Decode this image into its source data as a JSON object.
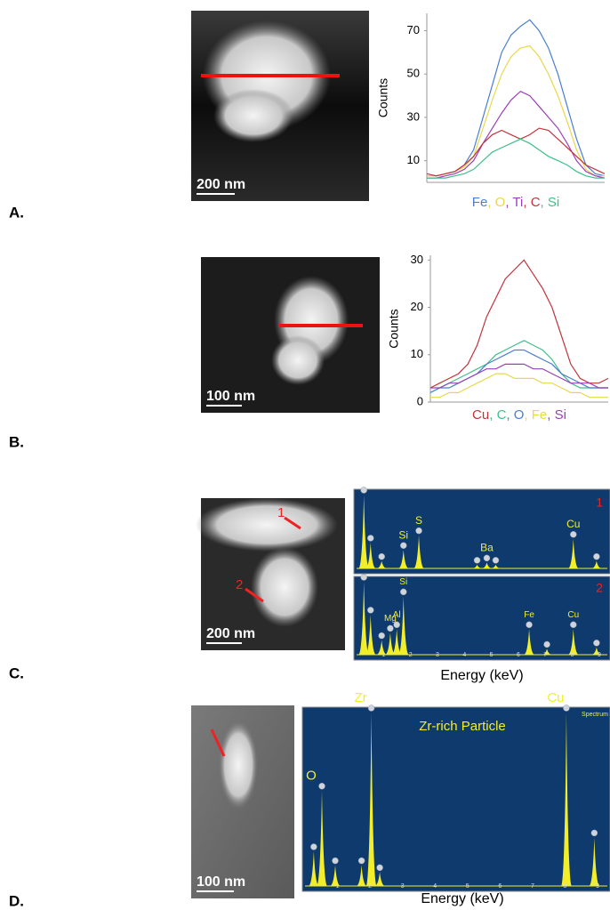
{
  "legend_separator": ", ",
  "panels": [
    {
      "label": "A.",
      "scale_bar": "200 nm",
      "profile": {
        "y_label": "Counts",
        "ylim": [
          0,
          78
        ],
        "yticks": [
          10,
          30,
          50,
          70
        ],
        "series": [
          {
            "name": "Fe",
            "color": "#4a7fd0",
            "values": [
              3,
              3,
              4,
              5,
              8,
              15,
              30,
              45,
              60,
              68,
              72,
              75,
              70,
              62,
              50,
              35,
              20,
              8,
              4,
              3
            ]
          },
          {
            "name": "O",
            "color": "#e8d84a",
            "values": [
              3,
              3,
              4,
              5,
              7,
              12,
              25,
              38,
              50,
              58,
              62,
              63,
              58,
              50,
              40,
              28,
              15,
              6,
              3,
              3
            ]
          },
          {
            "name": "Ti",
            "color": "#9a3fb8",
            "values": [
              2,
              2,
              3,
              4,
              6,
              10,
              18,
              25,
              32,
              38,
              42,
              40,
              35,
              30,
              25,
              18,
              10,
              5,
              3,
              2
            ]
          },
          {
            "name": "C",
            "color": "#c0343a",
            "values": [
              4,
              3,
              4,
              5,
              8,
              12,
              18,
              22,
              24,
              22,
              20,
              22,
              25,
              24,
              20,
              16,
              12,
              8,
              6,
              4
            ]
          },
          {
            "name": "Si",
            "color": "#3fbf8a",
            "values": [
              2,
              2,
              2,
              3,
              4,
              6,
              10,
              14,
              16,
              18,
              20,
              18,
              15,
              12,
              10,
              8,
              5,
              3,
              2,
              2
            ]
          }
        ]
      }
    },
    {
      "label": "B.",
      "scale_bar": "100 nm",
      "profile": {
        "y_label": "Counts",
        "ylim": [
          0,
          31
        ],
        "yticks": [
          0,
          10,
          20,
          30
        ],
        "series": [
          {
            "name": "Cu",
            "color": "#c0343a",
            "values": [
              3,
              4,
              5,
              6,
              8,
              12,
              18,
              22,
              26,
              28,
              30,
              27,
              24,
              20,
              14,
              8,
              5,
              4,
              4,
              5
            ]
          },
          {
            "name": "C",
            "color": "#3fbf8a",
            "values": [
              2,
              3,
              4,
              5,
              6,
              7,
              8,
              10,
              11,
              12,
              13,
              12,
              11,
              9,
              6,
              4,
              3,
              3,
              3,
              3
            ]
          },
          {
            "name": "O",
            "color": "#4a7fd0",
            "values": [
              2,
              3,
              3,
              4,
              5,
              6,
              8,
              9,
              10,
              11,
              11,
              10,
              9,
              8,
              6,
              5,
              4,
              3,
              3,
              3
            ]
          },
          {
            "name": "Fe",
            "color": "#e8d84a",
            "values": [
              1,
              1,
              2,
              2,
              3,
              4,
              5,
              6,
              6,
              5,
              5,
              5,
              4,
              4,
              3,
              2,
              2,
              1,
              1,
              1
            ]
          },
          {
            "name": "Si",
            "color": "#9a3fb8",
            "values": [
              3,
              3,
              4,
              4,
              5,
              6,
              7,
              7,
              8,
              8,
              8,
              7,
              7,
              6,
              5,
              4,
              4,
              4,
              3,
              3
            ]
          }
        ]
      }
    },
    {
      "label": "C.",
      "scale_bar": "200 nm",
      "x_label": "Energy (keV)",
      "xlim": [
        0,
        9.3
      ],
      "xticks": [
        1,
        2,
        3,
        4,
        5,
        6,
        7,
        8,
        9
      ],
      "spectra": [
        {
          "number": "1",
          "peaks": [
            {
              "energy": 0.27,
              "height": 1
            },
            {
              "energy": 0.52,
              "height": 0.35
            },
            {
              "energy": 0.93,
              "height": 0.1
            },
            {
              "energy": 1.74,
              "height": 0.25,
              "label": "Si"
            },
            {
              "energy": 2.31,
              "height": 0.45,
              "label": "S"
            },
            {
              "energy": 4.47,
              "height": 0.05
            },
            {
              "energy": 4.83,
              "height": 0.08,
              "label": "Ba"
            },
            {
              "energy": 5.16,
              "height": 0.05
            },
            {
              "energy": 8.04,
              "height": 0.4,
              "label": "Cu"
            },
            {
              "energy": 8.9,
              "height": 0.1
            }
          ]
        },
        {
          "number": "2",
          "peaks": [
            {
              "energy": 0.27,
              "height": 1
            },
            {
              "energy": 0.52,
              "height": 0.55
            },
            {
              "energy": 0.93,
              "height": 0.2
            },
            {
              "energy": 1.25,
              "height": 0.3,
              "label": "Mg"
            },
            {
              "energy": 1.49,
              "height": 0.35,
              "label": "Al"
            },
            {
              "energy": 1.74,
              "height": 0.8,
              "label": "Si"
            },
            {
              "energy": 6.4,
              "height": 0.35,
              "label": "Fe"
            },
            {
              "energy": 7.06,
              "height": 0.08
            },
            {
              "energy": 8.04,
              "height": 0.35,
              "label": "Cu"
            },
            {
              "energy": 8.9,
              "height": 0.1
            }
          ]
        }
      ]
    },
    {
      "label": "D.",
      "scale_bar": "100 nm",
      "x_label": "Energy (keV)",
      "xlim": [
        0,
        9.3
      ],
      "xticks": [
        1,
        2,
        3,
        4,
        5,
        6,
        7,
        8,
        9
      ],
      "spectra": [
        {
          "title": "Zr-rich Particle",
          "tag": "Spectrum",
          "peaks": [
            {
              "energy": 0.27,
              "height": 0.2
            },
            {
              "energy": 0.52,
              "height": 0.55,
              "label": "O"
            },
            {
              "energy": 0.93,
              "height": 0.12
            },
            {
              "energy": 1.74,
              "height": 0.12
            },
            {
              "energy": 2.04,
              "height": 1,
              "label": "Zr"
            },
            {
              "energy": 2.3,
              "height": 0.08
            },
            {
              "energy": 8.04,
              "height": 1,
              "label": "Cu"
            },
            {
              "energy": 8.9,
              "height": 0.28
            }
          ]
        }
      ]
    }
  ]
}
